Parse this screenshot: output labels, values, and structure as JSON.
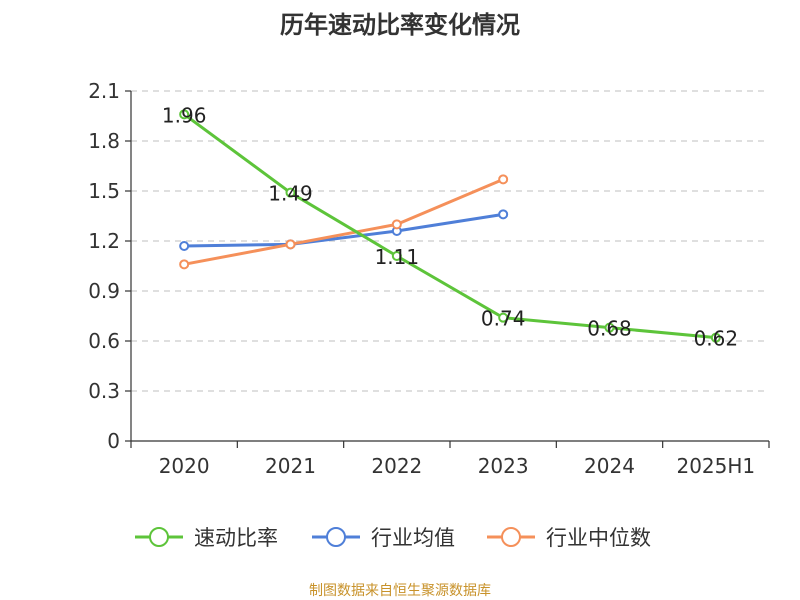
{
  "chart_data": {
    "type": "line",
    "title": "历年速动比率变化情况",
    "categories": [
      "2020",
      "2021",
      "2022",
      "2023",
      "2024",
      "2025H1"
    ],
    "ylim": [
      0,
      2.1
    ],
    "yticks": [
      "0",
      "0.3",
      "0.6",
      "0.9",
      "1.2",
      "1.5",
      "1.8",
      "2.1"
    ],
    "grid": true,
    "legend_position": "bottom",
    "series": [
      {
        "name": "速动比率",
        "color": "#5dc43a",
        "values": [
          1.96,
          1.49,
          1.11,
          0.74,
          0.68,
          0.62
        ],
        "labels": [
          "1.96",
          "1.49",
          "1.11",
          "0.74",
          "0.68",
          "0.62"
        ]
      },
      {
        "name": "行业均值",
        "color": "#4f7fd8",
        "values": [
          1.17,
          1.18,
          1.26,
          1.36,
          null,
          null
        ]
      },
      {
        "name": "行业中位数",
        "color": "#f5905a",
        "values": [
          1.06,
          1.18,
          1.3,
          1.57,
          null,
          null
        ]
      }
    ]
  },
  "footer": {
    "source": "制图数据来自恒生聚源数据库",
    "source_color": "#c8922a"
  }
}
